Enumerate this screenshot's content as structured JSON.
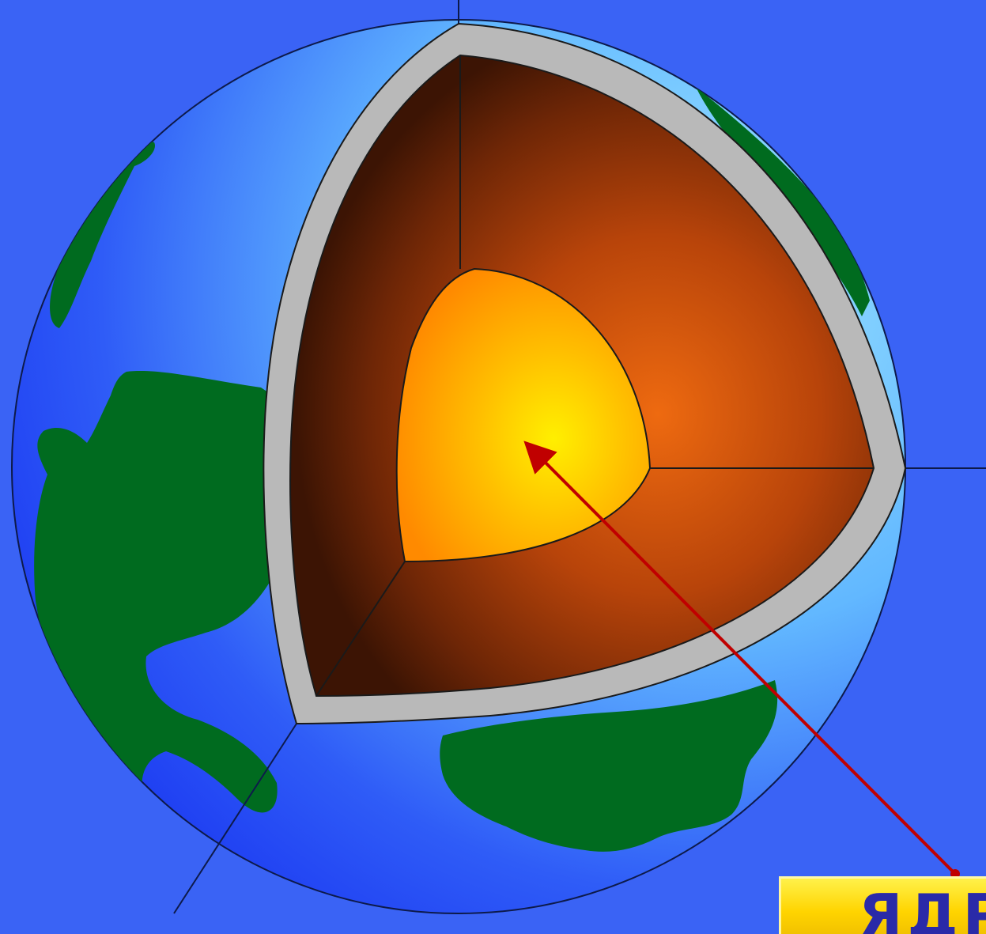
{
  "label": {
    "text": "ЯДРО"
  },
  "colors": {
    "background": "#3a63f5",
    "ocean_light": "#7fd3ff",
    "ocean_dark": "#1e3cf5",
    "land": "#006b1f",
    "crust": "#b8b8b8",
    "mantle_light": "#d9560a",
    "mantle_dark": "#3a1203",
    "core_center": "#ffe600",
    "core_edge": "#ff8a00",
    "arrow": "#c00000",
    "label_fill": "#ffd800",
    "label_text": "#2a2aa8"
  },
  "icons": {
    "pointer": "arrow-icon"
  }
}
